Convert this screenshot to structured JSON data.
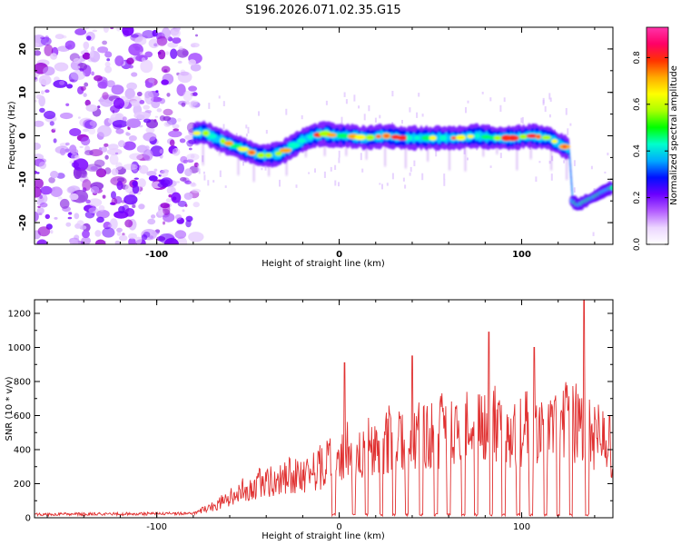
{
  "title": "S196.2026.071.02.35.G15",
  "chart_data": [
    {
      "type": "heatmap",
      "xlabel": "Height of straight line (km)",
      "ylabel": "Frequency (Hz)",
      "xlim": [
        -167,
        150
      ],
      "ylim": [
        -25,
        25
      ],
      "x_ticks": [
        -100,
        0,
        100
      ],
      "y_ticks": [
        -20,
        -10,
        0,
        10,
        20
      ],
      "colorbar": {
        "label": "Normalized spectral amplitude",
        "range": [
          0,
          0.93
        ],
        "ticks": [
          0,
          0.2,
          0.4,
          0.6,
          0.8
        ],
        "colors": [
          "#ffffff",
          "#ecd6ff",
          "#b35cff",
          "#6a00ff",
          "#0010ff",
          "#00aaff",
          "#00ffcc",
          "#00ff00",
          "#aaff00",
          "#ffff00",
          "#ffaa00",
          "#ff3300",
          "#ff0066",
          "#ff33aa"
        ]
      },
      "track": {
        "x": [
          -80,
          -74,
          -68,
          -62,
          -56,
          -50,
          -44,
          -38,
          -32,
          -26,
          -20,
          -14,
          -8,
          -2,
          5,
          15,
          25,
          35,
          45,
          55,
          65,
          75,
          85,
          95,
          105,
          115,
          121,
          126,
          128,
          131,
          135,
          140,
          144,
          149
        ],
        "y": [
          0.5,
          0.8,
          -0.5,
          -1.5,
          -2.5,
          -3.5,
          -4.5,
          -4.5,
          -4,
          -2.5,
          -1,
          0,
          0.5,
          0,
          0,
          -0.5,
          0,
          -0.5,
          -0.5,
          -0.5,
          -0.5,
          0,
          -0.5,
          -0.5,
          0,
          -0.5,
          -2,
          -3,
          -15,
          -16,
          -15,
          -14,
          -13,
          -12
        ]
      },
      "noise_region_x": [
        -167,
        -78
      ]
    },
    {
      "type": "line",
      "xlabel": "Height of straight line (km)",
      "ylabel": "SNR (10 * v/v)",
      "xlim": [
        -167,
        150
      ],
      "ylim": [
        0,
        1280
      ],
      "x_ticks": [
        -100,
        0,
        100
      ],
      "y_ticks": [
        0,
        200,
        400,
        600,
        800,
        1000,
        1200
      ],
      "color": "#e03030",
      "envelope": {
        "x": [
          -167,
          -130,
          -80,
          -70,
          -60,
          -50,
          -40,
          -30,
          -20,
          -10,
          0,
          10,
          20,
          30,
          40,
          50,
          60,
          70,
          80,
          90,
          100,
          110,
          120,
          130,
          140,
          150
        ],
        "y": [
          20,
          22,
          25,
          60,
          120,
          180,
          220,
          240,
          260,
          300,
          400,
          420,
          440,
          460,
          480,
          500,
          510,
          520,
          530,
          540,
          520,
          540,
          560,
          560,
          500,
          350
        ]
      },
      "peaks": [
        {
          "x": 3,
          "y": 910
        },
        {
          "x": 40,
          "y": 950
        },
        {
          "x": 82,
          "y": 1090
        },
        {
          "x": 107,
          "y": 1000
        },
        {
          "x": 134,
          "y": 1280
        },
        {
          "x": 148,
          "y": 600
        }
      ],
      "dips_x": [
        -3,
        8,
        15,
        23,
        30,
        37,
        45,
        53,
        60,
        68,
        75,
        83,
        90,
        98,
        105,
        113,
        120,
        127,
        136
      ]
    }
  ]
}
